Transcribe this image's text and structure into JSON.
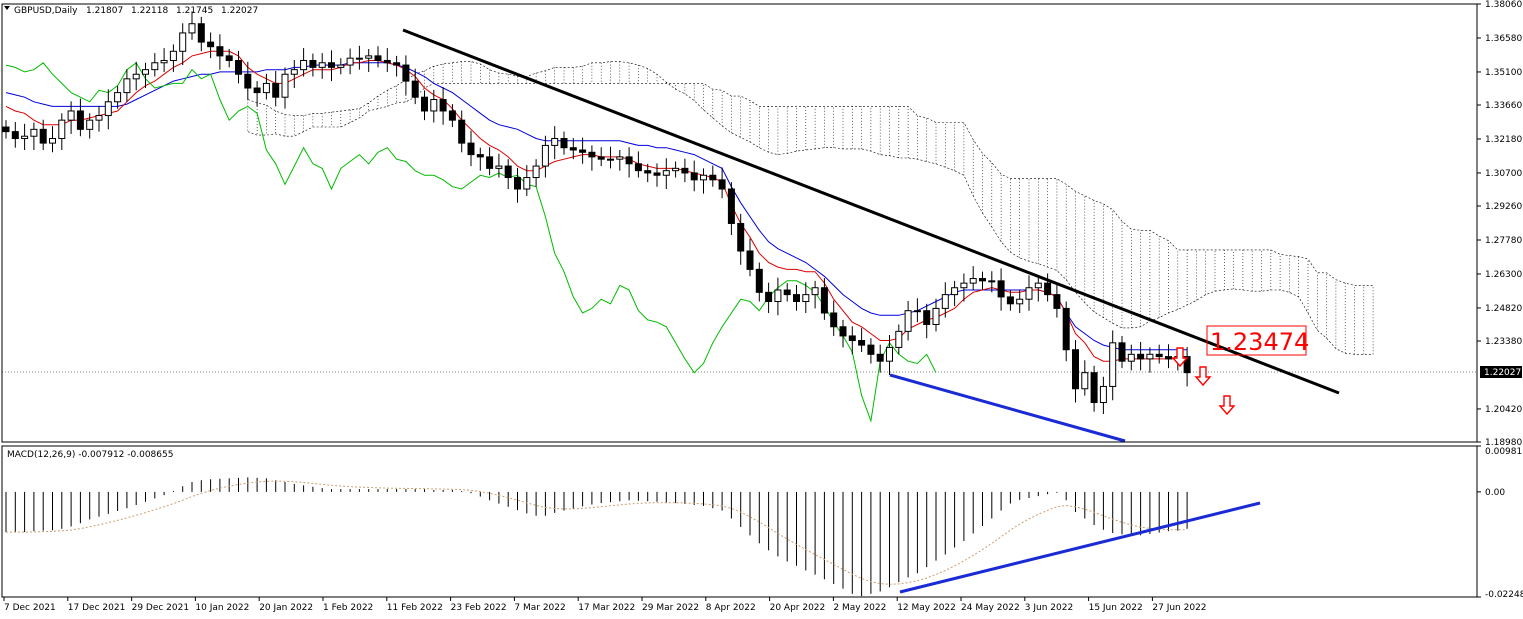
{
  "chart_data": {
    "type": "candlestick",
    "symbol": "GBPUSD,Daily",
    "ohlc": [
      "1.21807",
      "1.22118",
      "1.21745",
      "1.22027"
    ],
    "price_labels": [
      "1.38060",
      "1.36580",
      "1.35100",
      "1.33660",
      "1.32180",
      "1.30700",
      "1.29260",
      "1.27780",
      "1.26300",
      "1.24820",
      "1.23380",
      "1.20420",
      "1.18980"
    ],
    "current_price": "1.22027",
    "ylim": [
      1.1898,
      1.3806
    ],
    "date_labels": [
      "7 Dec 2021",
      "17 Dec 2021",
      "29 Dec 2021",
      "10 Jan 2022",
      "20 Jan 2022",
      "1 Feb 2022",
      "11 Feb 2022",
      "23 Feb 2022",
      "7 Mar 2022",
      "17 Mar 2022",
      "29 Mar 2022",
      "8 Apr 2022",
      "20 Apr 2022",
      "2 May 2022",
      "12 May 2022",
      "24 May 2022",
      "3 Jun 2022",
      "15 Jun 2022",
      "27 Jun 2022"
    ],
    "annotation": "1.23474",
    "series": [
      {
        "name": "close",
        "values": [
          1.325,
          1.322,
          1.323,
          1.326,
          1.32,
          1.322,
          1.33,
          1.334,
          1.326,
          1.33,
          1.332,
          1.338,
          1.342,
          1.348,
          1.35,
          1.352,
          1.355,
          1.356,
          1.36,
          1.368,
          1.372,
          1.364,
          1.362,
          1.358,
          1.356,
          1.35,
          1.344,
          1.342,
          1.346,
          1.34,
          1.35,
          1.352,
          1.356,
          1.353,
          1.355,
          1.353,
          1.354,
          1.357,
          1.357,
          1.358,
          1.356,
          1.355,
          1.354,
          1.347,
          1.34,
          1.334,
          1.339,
          1.334,
          1.33,
          1.32,
          1.315,
          1.314,
          1.309,
          1.31,
          1.305,
          1.3,
          1.305,
          1.31,
          1.319,
          1.322,
          1.318,
          1.317,
          1.316,
          1.314,
          1.313,
          1.313,
          1.314,
          1.311,
          1.308,
          1.307,
          1.306,
          1.308,
          1.309,
          1.307,
          1.304,
          1.306,
          1.304,
          1.3,
          1.285,
          1.273,
          1.265,
          1.255,
          1.251,
          1.256,
          1.254,
          1.251,
          1.254,
          1.257,
          1.246,
          1.24,
          1.236,
          1.234,
          1.232,
          1.228,
          1.225,
          1.231,
          1.238,
          1.247,
          1.247,
          1.241,
          1.248,
          1.254,
          1.257,
          1.259,
          1.261,
          1.26,
          1.26,
          1.253,
          1.25,
          1.252,
          1.257,
          1.259,
          1.254,
          1.248,
          1.23,
          1.213,
          1.22,
          1.207,
          1.214,
          1.233,
          1.225,
          1.228,
          1.226,
          1.228,
          1.227,
          1.226,
          1.227,
          1.22
        ]
      },
      {
        "name": "Tenkan",
        "values": [
          1.336,
          1.334,
          1.333,
          1.33,
          1.328,
          1.328,
          1.328,
          1.33,
          1.33,
          1.331,
          1.332,
          1.333,
          1.334,
          1.338,
          1.342,
          1.345,
          1.347,
          1.35,
          1.353,
          1.355,
          1.358,
          1.359,
          1.36,
          1.36,
          1.36,
          1.358,
          1.353,
          1.35,
          1.348,
          1.346,
          1.346,
          1.348,
          1.35,
          1.352,
          1.352,
          1.352,
          1.353,
          1.355,
          1.355,
          1.356,
          1.356,
          1.355,
          1.354,
          1.352,
          1.349,
          1.344,
          1.341,
          1.339,
          1.335,
          1.33,
          1.326,
          1.322,
          1.319,
          1.317,
          1.314,
          1.31,
          1.308,
          1.308,
          1.31,
          1.312,
          1.313,
          1.314,
          1.315,
          1.315,
          1.314,
          1.314,
          1.314,
          1.313,
          1.311,
          1.31,
          1.309,
          1.309,
          1.309,
          1.308,
          1.307,
          1.306,
          1.305,
          1.303,
          1.293,
          1.285,
          1.279,
          1.272,
          1.268,
          1.266,
          1.265,
          1.265,
          1.264,
          1.264,
          1.259,
          1.252,
          1.247,
          1.242,
          1.24,
          1.237,
          1.234,
          1.234,
          1.235,
          1.239,
          1.241,
          1.243,
          1.244,
          1.246,
          1.248,
          1.252,
          1.255,
          1.256,
          1.257,
          1.256,
          1.255,
          1.255,
          1.256,
          1.256,
          1.255,
          1.253,
          1.246,
          1.237,
          1.233,
          1.227,
          1.225,
          1.225,
          1.226,
          1.226,
          1.226,
          1.226,
          1.226,
          1.226,
          1.226,
          1.226
        ]
      },
      {
        "name": "Kijun",
        "values": [
          1.342,
          1.341,
          1.34,
          1.338,
          1.337,
          1.336,
          1.336,
          1.336,
          1.336,
          1.336,
          1.336,
          1.336,
          1.336,
          1.337,
          1.339,
          1.341,
          1.343,
          1.345,
          1.347,
          1.348,
          1.349,
          1.35,
          1.35,
          1.351,
          1.351,
          1.351,
          1.351,
          1.351,
          1.352,
          1.352,
          1.352,
          1.353,
          1.353,
          1.354,
          1.354,
          1.354,
          1.354,
          1.355,
          1.355,
          1.355,
          1.355,
          1.355,
          1.354,
          1.353,
          1.351,
          1.349,
          1.346,
          1.344,
          1.342,
          1.339,
          1.336,
          1.333,
          1.33,
          1.328,
          1.327,
          1.326,
          1.324,
          1.322,
          1.321,
          1.321,
          1.321,
          1.321,
          1.321,
          1.321,
          1.321,
          1.321,
          1.321,
          1.32,
          1.319,
          1.319,
          1.318,
          1.318,
          1.317,
          1.316,
          1.315,
          1.313,
          1.311,
          1.309,
          1.301,
          1.294,
          1.288,
          1.282,
          1.277,
          1.274,
          1.272,
          1.27,
          1.268,
          1.265,
          1.262,
          1.258,
          1.254,
          1.251,
          1.248,
          1.246,
          1.245,
          1.245,
          1.245,
          1.246,
          1.247,
          1.249,
          1.251,
          1.253,
          1.255,
          1.256,
          1.256,
          1.256,
          1.256,
          1.256,
          1.256,
          1.256,
          1.256,
          1.256,
          1.255,
          1.253,
          1.246,
          1.24,
          1.237,
          1.234,
          1.232,
          1.231,
          1.23,
          1.23,
          1.23,
          1.23,
          1.23,
          1.23,
          1.23,
          1.23
        ]
      },
      {
        "name": "Chikou",
        "values": [
          1.354,
          1.353,
          1.351,
          1.352,
          1.355,
          1.35,
          1.346,
          1.342,
          1.34,
          1.338,
          1.343,
          1.342,
          1.345,
          1.352,
          1.355,
          1.348,
          1.344,
          1.345,
          1.346,
          1.346,
          1.352,
          1.348,
          1.35,
          1.339,
          1.33,
          1.334,
          1.336,
          1.333,
          1.317,
          1.311,
          1.302,
          1.31,
          1.318,
          1.311,
          1.309,
          1.3,
          1.309,
          1.312,
          1.315,
          1.311,
          1.316,
          1.318,
          1.313,
          1.312,
          1.308,
          1.306,
          1.306,
          1.304,
          1.301,
          1.3,
          1.303,
          1.306,
          1.305,
          1.307,
          1.305,
          1.306,
          1.302,
          1.301,
          1.288,
          1.272,
          1.264,
          1.253,
          1.246,
          1.248,
          1.252,
          1.25,
          1.258,
          1.256,
          1.247,
          1.243,
          1.242,
          1.24,
          1.233,
          1.226,
          1.22,
          1.224,
          1.233,
          1.24,
          1.246,
          1.252,
          1.251,
          1.247,
          1.253,
          1.257,
          1.26,
          1.26,
          1.258,
          1.255,
          1.249,
          1.242,
          1.236,
          1.229,
          1.21,
          1.199,
          1.225,
          1.233,
          1.228,
          1.225,
          1.224,
          1.228,
          1.22
        ]
      },
      {
        "name": "MACD",
        "values": [
          -0.0086,
          -0.0086,
          -0.0086,
          -0.0084,
          -0.0083,
          -0.0082,
          -0.0079,
          -0.0074,
          -0.0067,
          -0.0059,
          -0.0053,
          -0.0047,
          -0.0041,
          -0.0035,
          -0.0028,
          -0.0021,
          -0.0014,
          -0.0007,
          0.0002,
          0.0012,
          0.0021,
          0.0025,
          0.0027,
          0.0028,
          0.0029,
          0.003,
          0.0031,
          0.003,
          0.0029,
          0.0025,
          0.0021,
          0.0017,
          0.0014,
          0.0011,
          0.0008,
          0.0006,
          0.0006,
          0.0006,
          0.0006,
          0.0006,
          0.0006,
          0.0006,
          0.0006,
          0.0006,
          0.0006,
          0.0006,
          0.0004,
          0.0004,
          0.0004,
          0.0002,
          -0.0003,
          -0.001,
          -0.0018,
          -0.0025,
          -0.0032,
          -0.0039,
          -0.0046,
          -0.0051,
          -0.0051,
          -0.0045,
          -0.004,
          -0.0036,
          -0.0031,
          -0.0027,
          -0.0024,
          -0.0022,
          -0.002,
          -0.0018,
          -0.0019,
          -0.002,
          -0.0021,
          -0.0023,
          -0.0024,
          -0.0026,
          -0.0028,
          -0.003,
          -0.0035,
          -0.004,
          -0.0057,
          -0.0075,
          -0.0093,
          -0.011,
          -0.0125,
          -0.0138,
          -0.0149,
          -0.0158,
          -0.0168,
          -0.0177,
          -0.0187,
          -0.0197,
          -0.0207,
          -0.0218,
          -0.0223,
          -0.0218,
          -0.0213,
          -0.0204,
          -0.0193,
          -0.0183,
          -0.0174,
          -0.0161,
          -0.0147,
          -0.0134,
          -0.0119,
          -0.0105,
          -0.0089,
          -0.0073,
          -0.0057,
          -0.004,
          -0.0025,
          -0.0017,
          -0.0013,
          -0.0009,
          -0.0005,
          -0.0002,
          -0.0018,
          -0.0043,
          -0.0057,
          -0.0071,
          -0.0081,
          -0.0088,
          -0.0091,
          -0.0094,
          -0.0093,
          -0.009,
          -0.0087,
          -0.0084,
          -0.0083,
          -0.0079
        ]
      }
    ]
  },
  "macd": {
    "label": "MACD(12,26,9) -0.007912 -0.008655",
    "levels": [
      "0.009813",
      "0.00",
      "-0.022488"
    ],
    "ylim": [
      -0.022488,
      0.009813
    ]
  },
  "colors": {
    "bg": "#ffffff",
    "grid": "#c0c0c0",
    "candle": "#000000",
    "tenkan": "#dd0000",
    "kijun": "#0000dd",
    "chikou": "#00bb00",
    "cloud": "#000000",
    "trendline": "#000000",
    "support": "#1a2bd6",
    "annotation": "#ff0000",
    "arrow": "#ff0000"
  },
  "icons": {
    "menu": "triangle-down-icon",
    "arrows": "down-arrow-icon"
  }
}
